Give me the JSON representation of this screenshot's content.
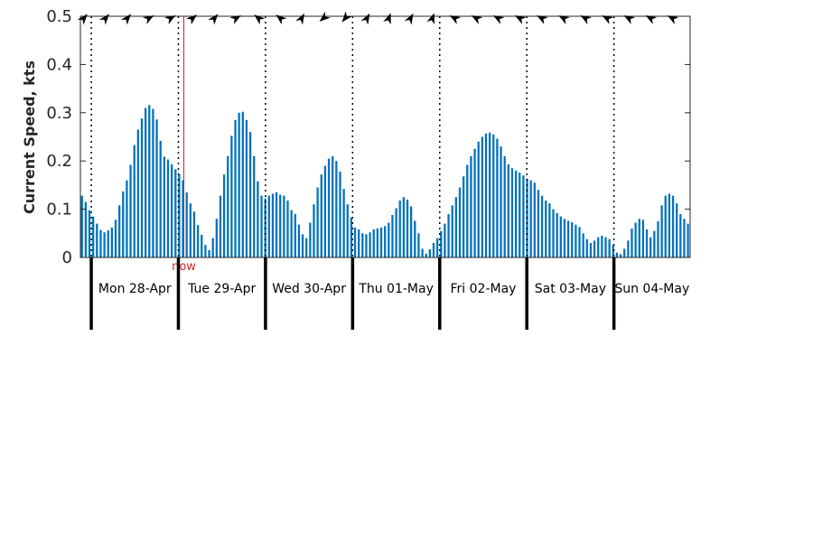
{
  "chart_data": {
    "type": "bar",
    "title": "",
    "xlabel": "",
    "ylabel": "Current Speed, kts",
    "ylim": [
      0,
      0.5
    ],
    "yticks": [
      {
        "value": 0,
        "label": "0"
      },
      {
        "value": 0.1,
        "label": "0.1"
      },
      {
        "value": 0.2,
        "label": "0.2"
      },
      {
        "value": 0.3,
        "label": "0.3"
      },
      {
        "value": 0.4,
        "label": "0.4"
      },
      {
        "value": 0.5,
        "label": "0.5"
      }
    ],
    "x_unit": "hour",
    "x_start": "Sun 27-Apr 21:00",
    "xlim_hours": [
      0,
      168
    ],
    "days": [
      {
        "label": "Mon 28-Apr",
        "start_hour": 3
      },
      {
        "label": "Tue 29-Apr",
        "start_hour": 27
      },
      {
        "label": "Wed 30-Apr",
        "start_hour": 51
      },
      {
        "label": "Thu 01-May",
        "start_hour": 75
      },
      {
        "label": "Fri 02-May",
        "start_hour": 99
      },
      {
        "label": "Sat 03-May",
        "start_hour": 123
      },
      {
        "label": "Sun 04-May",
        "start_hour": 147
      }
    ],
    "now": {
      "label": "now",
      "hour": 28.5,
      "color": "#d62728"
    },
    "bar_color": "#0072bd",
    "values": [
      0.128,
      0.115,
      0.098,
      0.085,
      0.07,
      0.057,
      0.052,
      0.056,
      0.062,
      0.078,
      0.108,
      0.137,
      0.16,
      0.192,
      0.233,
      0.265,
      0.288,
      0.31,
      0.316,
      0.308,
      0.286,
      0.242,
      0.209,
      0.203,
      0.193,
      0.183,
      0.173,
      0.16,
      0.135,
      0.112,
      0.095,
      0.067,
      0.047,
      0.026,
      0.015,
      0.04,
      0.08,
      0.128,
      0.172,
      0.21,
      0.252,
      0.285,
      0.3,
      0.302,
      0.285,
      0.26,
      0.21,
      0.158,
      0.128,
      0.122,
      0.128,
      0.132,
      0.135,
      0.13,
      0.128,
      0.118,
      0.098,
      0.09,
      0.068,
      0.048,
      0.04,
      0.072,
      0.11,
      0.145,
      0.172,
      0.19,
      0.205,
      0.21,
      0.2,
      0.178,
      0.142,
      0.11,
      0.083,
      0.062,
      0.058,
      0.05,
      0.048,
      0.052,
      0.058,
      0.06,
      0.062,
      0.065,
      0.072,
      0.088,
      0.102,
      0.118,
      0.125,
      0.12,
      0.106,
      0.076,
      0.05,
      0.018,
      0.008,
      0.017,
      0.03,
      0.04,
      0.055,
      0.07,
      0.09,
      0.108,
      0.125,
      0.145,
      0.168,
      0.192,
      0.21,
      0.225,
      0.24,
      0.25,
      0.257,
      0.259,
      0.255,
      0.246,
      0.23,
      0.21,
      0.193,
      0.185,
      0.18,
      0.176,
      0.17,
      0.163,
      0.16,
      0.155,
      0.14,
      0.128,
      0.118,
      0.112,
      0.1,
      0.092,
      0.085,
      0.08,
      0.076,
      0.073,
      0.068,
      0.063,
      0.05,
      0.038,
      0.03,
      0.035,
      0.042,
      0.045,
      0.042,
      0.038,
      0.026,
      0.01,
      0.007,
      0.018,
      0.035,
      0.06,
      0.072,
      0.08,
      0.078,
      0.058,
      0.042,
      0.055,
      0.075,
      0.108,
      0.128,
      0.132,
      0.128,
      0.112,
      0.09,
      0.08,
      0.07
    ],
    "direction_arrows": {
      "description": "current direction arrows along top axis",
      "hours": [
        0,
        6,
        12,
        18,
        24,
        30,
        36,
        42,
        48,
        54,
        60,
        66,
        72,
        78,
        84,
        90,
        96,
        102,
        108,
        114,
        120,
        126,
        132,
        138,
        144,
        150,
        156,
        162
      ],
      "angles_deg": [
        40,
        40,
        40,
        60,
        60,
        50,
        40,
        60,
        310,
        310,
        30,
        230,
        220,
        30,
        20,
        30,
        20,
        300,
        300,
        300,
        300,
        300,
        300,
        300,
        300,
        300,
        300,
        300
      ]
    }
  }
}
